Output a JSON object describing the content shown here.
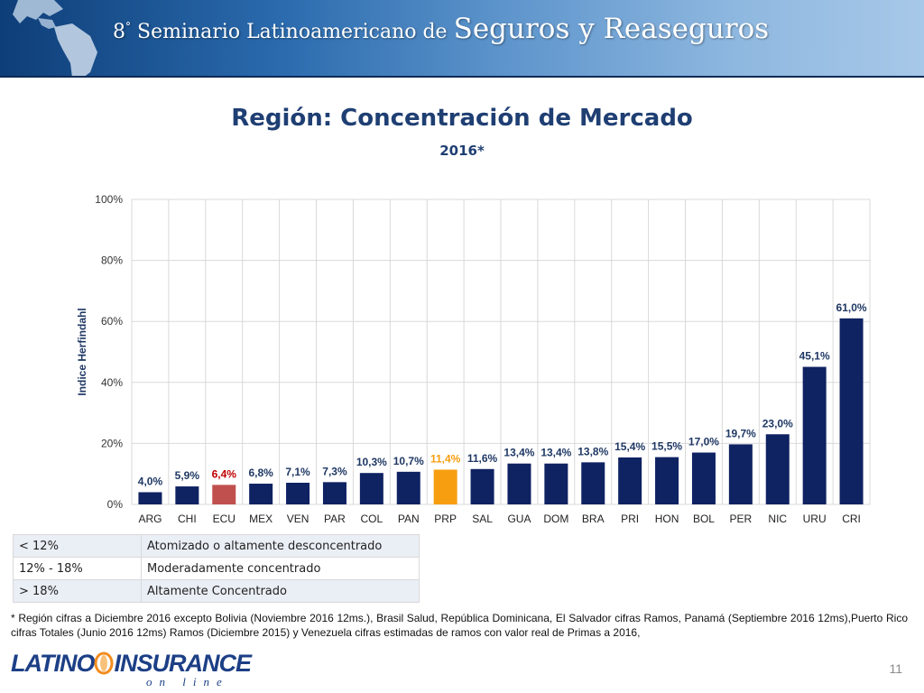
{
  "banner": {
    "ordinal": "8",
    "title_small": "Seminario Latinoamericano de",
    "title_big": "Seguros y Reaseguros"
  },
  "chart_data": {
    "type": "bar",
    "title": "Región: Concentración de Mercado",
    "subtitle": "2016*",
    "ylabel": "Indice Herfindahl",
    "ylim": [
      0,
      100
    ],
    "yticks": [
      "0%",
      "20%",
      "40%",
      "60%",
      "80%",
      "100%"
    ],
    "grid": true,
    "categories": [
      "ARG",
      "CHI",
      "ECU",
      "MEX",
      "VEN",
      "PAR",
      "COL",
      "PAN",
      "PRP",
      "SAL",
      "GUA",
      "DOM",
      "BRA",
      "PRI",
      "HON",
      "BOL",
      "PER",
      "NIC",
      "URU",
      "CRI"
    ],
    "values": [
      4.0,
      5.9,
      6.4,
      6.8,
      7.1,
      7.3,
      10.3,
      10.7,
      11.4,
      11.6,
      13.4,
      13.4,
      13.8,
      15.4,
      15.5,
      17.0,
      19.7,
      23.0,
      45.1,
      61.0
    ],
    "value_labels": [
      "4,0%",
      "5,9%",
      "6,4%",
      "6,8%",
      "7,1%",
      "7,3%",
      "10,3%",
      "10,7%",
      "11,4%",
      "11,6%",
      "13,4%",
      "13,4%",
      "13,8%",
      "15,4%",
      "15,5%",
      "17,0%",
      "19,7%",
      "23,0%",
      "45,1%",
      "61,0%"
    ],
    "colors": {
      "default": "#0f2262",
      "ECU": "#c0504d",
      "PRP": "#f79e10"
    },
    "label_colors": {
      "default": "#1f3864",
      "ECU": "#c00000",
      "PRP": "#f79e10"
    }
  },
  "legend_table": [
    {
      "range": "< 12%",
      "description": "Atomizado o altamente desconcentrado"
    },
    {
      "range": "12% - 18%",
      "description": "Moderadamente concentrado"
    },
    {
      "range": "> 18%",
      "description": "Altamente Concentrado"
    }
  ],
  "footnote": "* Región cifras a Diciembre 2016 excepto Bolivia (Noviembre 2016 12ms.), Brasil Salud, República Dominicana, El Salvador cifras Ramos, Panamá (Septiembre 2016 12ms),Puerto Rico cifras Totales (Junio 2016 12ms) Ramos (Diciembre 2015) y Venezuela cifras estimadas de ramos con valor real de Primas a 2016,",
  "logo": {
    "part1": "LATINO",
    "part2": "INSURANCE",
    "tagline": "on line"
  },
  "page_number": "11"
}
